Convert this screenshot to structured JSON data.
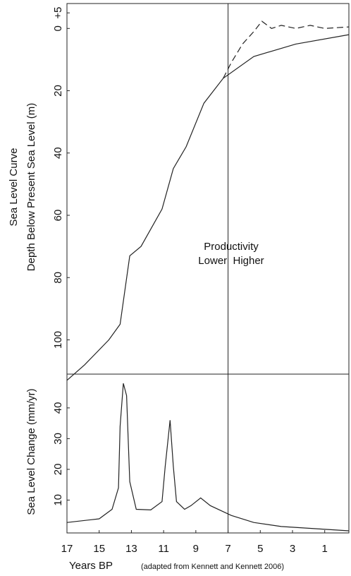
{
  "chart_data": [
    {
      "type": "line",
      "ylabel_1": "Sea Level Curve",
      "ylabel_2": "Depth Below Present Sea Level (m)",
      "annotation_1": "Productivity",
      "annotation_2": "Lower  Higher",
      "xlim": [
        17,
        -0.5
      ],
      "ylim": [
        111,
        -8
      ],
      "yticks": [
        {
          "value": -5,
          "label": "+5"
        },
        0,
        20,
        40,
        60,
        80,
        100
      ],
      "vline": 7,
      "series": [
        {
          "color": "#222",
          "dash": false,
          "x": [
            17,
            15.9,
            14.4,
            13.7,
            13.1,
            12.4,
            11.1,
            10.4,
            9.6,
            8.5,
            7.3,
            5.4,
            2.8,
            -0.5
          ],
          "values": [
            113,
            108,
            100,
            95,
            73,
            70,
            58,
            45,
            38,
            24,
            16,
            9,
            5,
            2
          ]
        },
        {
          "color": "#222",
          "dash": true,
          "x": [
            7.3,
            6.8,
            6.1,
            5.4,
            4.9,
            4.3,
            3.7,
            2.8,
            1.9,
            1.0,
            -0.5
          ],
          "values": [
            16,
            11,
            5,
            1,
            -2.3,
            0,
            -1,
            0,
            -1,
            0,
            -0.5
          ]
        }
      ]
    },
    {
      "type": "line",
      "ylabel": "Sea Level Change (mm/yr)",
      "xlabel": "Years BP",
      "note": "(adapted from Kennett and Kennett 2006)",
      "xlim": [
        17,
        -0.5
      ],
      "ylim": [
        -0.7,
        51
      ],
      "xticks": [
        17,
        15,
        13,
        11,
        9,
        7,
        5,
        3,
        1
      ],
      "yticks": [
        10,
        20,
        30,
        40
      ],
      "vline": 7,
      "series": [
        {
          "color": "#222",
          "dash": false,
          "x": [
            17,
            15.0,
            14.2,
            13.8,
            13.7,
            13.5,
            13.3,
            13.1,
            12.7,
            11.8,
            11.1,
            10.9,
            10.6,
            10.4,
            10.2,
            9.7,
            9.3,
            8.7,
            8.1,
            6.8,
            5.4,
            3.7,
            -0.5
          ],
          "values": [
            2.7,
            3.9,
            7,
            14,
            34,
            48,
            44,
            16,
            7,
            6.8,
            9.5,
            21,
            36,
            21,
            9.5,
            7,
            8.2,
            10.7,
            8.2,
            5,
            2.7,
            1.4,
            0
          ]
        }
      ]
    }
  ]
}
